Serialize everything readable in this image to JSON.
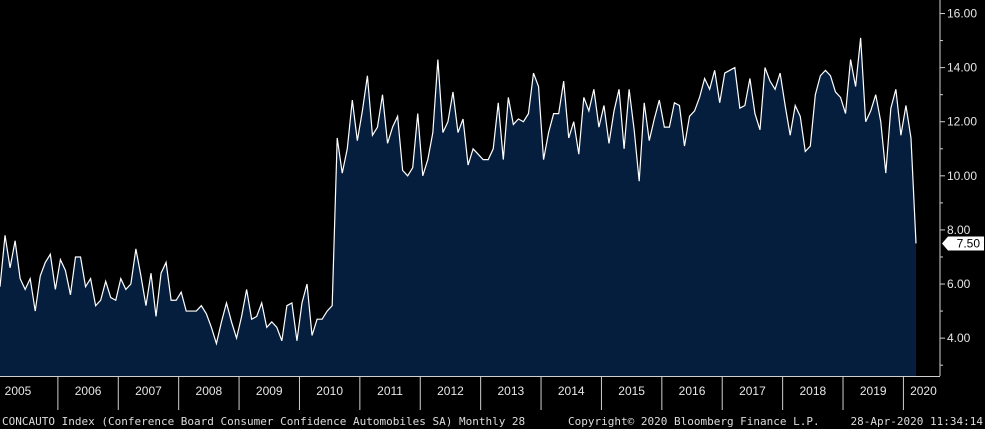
{
  "colors": {
    "background": "#000000",
    "area": "#061e3d",
    "line": "#ffffff",
    "axis": "#cfcfcf",
    "label_box": "#ffffff"
  },
  "footer": {
    "left": "CONCAUTO Index (Conference Board Consumer Confidence Automobiles SA)  Monthly 28",
    "center": "Copyright© 2020 Bloomberg Finance L.P.",
    "right": "28-Apr-2020 11:34:14"
  },
  "last_value_label": "7.50",
  "chart_data": {
    "type": "area",
    "title": "",
    "xlabel": "",
    "ylabel": "",
    "ylim": [
      2.6,
      16.5
    ],
    "y_ticks": [
      "16.00",
      "14.00",
      "12.00",
      "10.00",
      "8.00",
      "6.00",
      "4.00"
    ],
    "x_ticks": [
      "2005",
      "2006",
      "2007",
      "2008",
      "2009",
      "2010",
      "2011",
      "2012",
      "2013",
      "2014",
      "2015",
      "2016",
      "2017",
      "2018",
      "2019",
      "2020"
    ],
    "x_start": "2005-01",
    "frequency": "monthly",
    "values": [
      5.9,
      7.8,
      6.6,
      7.6,
      6.2,
      5.8,
      6.2,
      5.0,
      6.3,
      6.8,
      7.1,
      5.8,
      6.9,
      6.5,
      5.6,
      7.0,
      7.0,
      5.9,
      6.2,
      5.2,
      5.4,
      6.1,
      5.5,
      5.4,
      6.2,
      5.8,
      6.0,
      7.3,
      6.3,
      5.2,
      6.4,
      4.8,
      6.4,
      6.8,
      5.4,
      5.4,
      5.7,
      5.0,
      5.0,
      5.0,
      5.2,
      4.9,
      4.4,
      3.8,
      4.6,
      5.3,
      4.6,
      4.0,
      4.8,
      5.8,
      4.7,
      4.8,
      5.3,
      4.4,
      4.6,
      4.4,
      3.9,
      5.2,
      5.3,
      3.9,
      5.3,
      6.0,
      4.1,
      4.7,
      4.7,
      5.0,
      5.2,
      11.4,
      10.1,
      11.0,
      12.8,
      11.3,
      12.4,
      13.7,
      11.5,
      11.8,
      13.0,
      11.2,
      11.8,
      12.2,
      10.2,
      10.0,
      10.3,
      12.3,
      10.0,
      10.6,
      11.6,
      14.3,
      11.6,
      12.0,
      13.1,
      11.6,
      12.1,
      10.4,
      11.0,
      10.8,
      10.6,
      10.6,
      11.0,
      12.7,
      10.6,
      12.9,
      11.9,
      12.1,
      12.0,
      12.3,
      13.8,
      13.3,
      10.6,
      11.6,
      12.3,
      12.3,
      13.5,
      11.4,
      12.0,
      10.8,
      12.9,
      12.4,
      13.2,
      11.8,
      12.6,
      11.2,
      12.4,
      13.2,
      11.0,
      13.2,
      11.7,
      9.8,
      12.7,
      11.3,
      12.1,
      12.8,
      11.8,
      11.8,
      12.7,
      12.6,
      11.1,
      12.2,
      12.4,
      12.9,
      13.6,
      13.2,
      13.9,
      12.7,
      13.8,
      13.9,
      14.0,
      12.5,
      12.6,
      13.6,
      12.3,
      11.7,
      14.0,
      13.5,
      13.2,
      13.8,
      12.6,
      11.5,
      12.6,
      12.2,
      10.9,
      11.1,
      13.0,
      13.7,
      13.9,
      13.7,
      13.1,
      12.9,
      12.3,
      14.3,
      13.3,
      15.1,
      12.0,
      12.4,
      13.0,
      12.0,
      10.1,
      12.5,
      13.2,
      11.5,
      12.6,
      11.4,
      7.5
    ]
  }
}
